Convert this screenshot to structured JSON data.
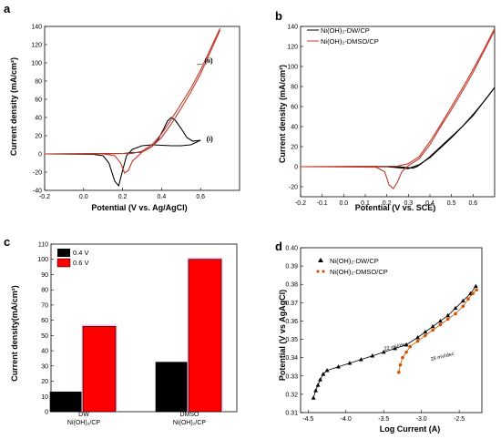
{
  "panels": {
    "a": {
      "letter": "a",
      "xlabel": "Potential (V vs. Ag/AgCl)",
      "ylabel": "Current density (mA/cm²)",
      "curve_labels": [
        "(i)",
        "(ii)"
      ]
    },
    "b": {
      "letter": "b",
      "xlabel": "Potential (V vs. SCE)",
      "ylabel": "Current density (mA/cm²)",
      "legend": [
        "Ni(OH)₂-DW/CP",
        "Ni(OH)₂-DMSO/CP"
      ]
    },
    "c": {
      "letter": "c",
      "ylabel": "Current density(mA/cm²)",
      "legend": [
        "0.4 V",
        "0.6 V"
      ],
      "xcat_line1": [
        "DW",
        "DMSO"
      ],
      "xcat_line2": [
        "Ni(OH)₂/CP",
        "Ni(OH)₂/CP"
      ]
    },
    "d": {
      "letter": "d",
      "xlabel": "Log Current (A)",
      "ylabel": "Potential (V vs AgAgCl)",
      "legend": [
        "Ni(OH)₂-DW/CP",
        "Ni(OH)₂-DMSO/CP"
      ],
      "annotations": [
        "22 mV/dec",
        "28 mV/dec"
      ]
    }
  },
  "colors": {
    "black": "#000000",
    "red": "#ff0000",
    "dark_red": "#c0392b",
    "orange_red": "#d35400",
    "bar_highlight": "#f2c6ee"
  },
  "chart_data": [
    {
      "panel": "a",
      "type": "line",
      "xlim": [
        -0.2,
        0.8
      ],
      "ylim": [
        -40,
        140
      ],
      "xticks": [
        -0.2,
        0.0,
        0.2,
        0.4,
        0.6
      ],
      "xtick_labels": [
        "-0.2",
        "0.0",
        "0.2",
        "0.4",
        "0.6"
      ],
      "yticks": [
        -40,
        -20,
        0,
        20,
        40,
        60,
        80,
        100,
        120,
        140
      ],
      "series": [
        {
          "label": "(i)",
          "color": "#000000",
          "forward": [
            [
              -0.2,
              0
            ],
            [
              0.2,
              0.5
            ],
            [
              0.3,
              2
            ],
            [
              0.35,
              8
            ],
            [
              0.38,
              15
            ],
            [
              0.41,
              27
            ],
            [
              0.43,
              36
            ],
            [
              0.45,
              40
            ],
            [
              0.47,
              37
            ],
            [
              0.5,
              28
            ],
            [
              0.53,
              18
            ],
            [
              0.56,
              14
            ],
            [
              0.6,
              15
            ]
          ],
          "reverse": [
            [
              0.6,
              15
            ],
            [
              0.55,
              10
            ],
            [
              0.5,
              9
            ],
            [
              0.45,
              9
            ],
            [
              0.4,
              9.5
            ],
            [
              0.35,
              10
            ],
            [
              0.3,
              9
            ],
            [
              0.25,
              5
            ],
            [
              0.22,
              -2
            ],
            [
              0.2,
              -18
            ],
            [
              0.18,
              -35
            ],
            [
              0.16,
              -30
            ],
            [
              0.13,
              -10
            ],
            [
              0.1,
              -2
            ],
            [
              0.05,
              -0.5
            ],
            [
              -0.2,
              0
            ]
          ]
        },
        {
          "label": "(ii)",
          "color": "#c0392b",
          "forward": [
            [
              -0.2,
              0
            ],
            [
              0.25,
              0.5
            ],
            [
              0.3,
              3
            ],
            [
              0.35,
              10
            ],
            [
              0.4,
              22
            ],
            [
              0.45,
              38
            ],
            [
              0.5,
              55
            ],
            [
              0.55,
              72
            ],
            [
              0.6,
              92
            ],
            [
              0.65,
              115
            ],
            [
              0.7,
              138
            ]
          ],
          "reverse": [
            [
              0.7,
              136
            ],
            [
              0.65,
              112
            ],
            [
              0.6,
              88
            ],
            [
              0.55,
              68
            ],
            [
              0.5,
              50
            ],
            [
              0.45,
              33
            ],
            [
              0.4,
              18
            ],
            [
              0.35,
              8
            ],
            [
              0.3,
              2
            ],
            [
              0.25,
              -8
            ],
            [
              0.23,
              -18
            ],
            [
              0.21,
              -21
            ],
            [
              0.19,
              -10
            ],
            [
              0.16,
              -2
            ],
            [
              0.1,
              0
            ],
            [
              -0.2,
              0
            ]
          ]
        }
      ]
    },
    {
      "panel": "b",
      "type": "line",
      "xlim": [
        -0.2,
        0.7
      ],
      "ylim": [
        -30,
        140
      ],
      "xticks": [
        -0.2,
        -0.1,
        0.0,
        0.1,
        0.2,
        0.3,
        0.4,
        0.5,
        0.6
      ],
      "xtick_labels": [
        "-0.2",
        "-0.1",
        "0.0",
        "0.1",
        "0.2",
        "0.3",
        "0.4",
        "0.5",
        "0.6"
      ],
      "yticks": [
        -20,
        0,
        20,
        40,
        60,
        80,
        100,
        120,
        140
      ],
      "series": [
        {
          "name": "Ni(OH)₂-DW/CP",
          "color": "#000000",
          "forward": [
            [
              -0.2,
              0
            ],
            [
              0.25,
              0
            ],
            [
              0.3,
              -1
            ],
            [
              0.32,
              -1.5
            ],
            [
              0.34,
              0
            ],
            [
              0.36,
              3
            ],
            [
              0.4,
              10
            ],
            [
              0.45,
              20
            ],
            [
              0.5,
              30
            ],
            [
              0.55,
              40
            ],
            [
              0.6,
              52
            ],
            [
              0.65,
              65
            ],
            [
              0.7,
              79
            ]
          ],
          "reverse": [
            [
              0.7,
              79
            ],
            [
              0.6,
              51
            ],
            [
              0.5,
              29
            ],
            [
              0.4,
              9
            ],
            [
              0.35,
              2
            ],
            [
              0.3,
              -2
            ],
            [
              0.25,
              -1
            ],
            [
              0.2,
              0
            ],
            [
              -0.2,
              0
            ]
          ]
        },
        {
          "name": "Ni(OH)₂-DMSO/CP",
          "color": "#c0392b",
          "forward": [
            [
              -0.2,
              0
            ],
            [
              0.25,
              0.5
            ],
            [
              0.3,
              3
            ],
            [
              0.35,
              10
            ],
            [
              0.4,
              25
            ],
            [
              0.45,
              42
            ],
            [
              0.5,
              60
            ],
            [
              0.55,
              78
            ],
            [
              0.6,
              97
            ],
            [
              0.65,
              117
            ],
            [
              0.7,
              138
            ]
          ],
          "reverse": [
            [
              0.7,
              136
            ],
            [
              0.65,
              115
            ],
            [
              0.6,
              94
            ],
            [
              0.55,
              75
            ],
            [
              0.5,
              57
            ],
            [
              0.45,
              40
            ],
            [
              0.4,
              22
            ],
            [
              0.35,
              8
            ],
            [
              0.3,
              1
            ],
            [
              0.27,
              -5
            ],
            [
              0.25,
              -15
            ],
            [
              0.23,
              -22
            ],
            [
              0.21,
              -18
            ],
            [
              0.19,
              -5
            ],
            [
              0.15,
              -0.5
            ],
            [
              -0.2,
              0
            ]
          ]
        }
      ]
    },
    {
      "panel": "c",
      "type": "bar",
      "ylim": [
        0,
        110
      ],
      "yticks": [
        0,
        10,
        20,
        30,
        40,
        50,
        60,
        70,
        80,
        90,
        100,
        110
      ],
      "categories": [
        "DW Ni(OH)₂/CP",
        "DMSO Ni(OH)₂/CP"
      ],
      "series": [
        {
          "name": "0.4 V",
          "color": "#000000",
          "values": [
            13,
            32.5
          ]
        },
        {
          "name": "0.6 V",
          "color": "#ff0000",
          "values": [
            56,
            100
          ]
        }
      ]
    },
    {
      "panel": "d",
      "type": "scatter",
      "xlim": [
        -4.6,
        -2.2
      ],
      "ylim": [
        0.31,
        0.4
      ],
      "xticks": [
        -4.5,
        -4.0,
        -3.5,
        -3.0,
        -2.5
      ],
      "xtick_labels": [
        "-4.5",
        "-4.0",
        "-3.5",
        "-3.0",
        "-2.5"
      ],
      "yticks": [
        0.31,
        0.32,
        0.33,
        0.34,
        0.35,
        0.36,
        0.37,
        0.38,
        0.39,
        0.4
      ],
      "ytick_labels": [
        "0.31",
        "0.32",
        "0.33",
        "0.34",
        "0.35",
        "0.36",
        "0.37",
        "0.38",
        "0.39",
        "0.40"
      ],
      "series": [
        {
          "name": "Ni(OH)₂-DW/CP",
          "color": "#000000",
          "marker": "triangle",
          "points": [
            [
              -4.43,
              0.318
            ],
            [
              -4.4,
              0.322
            ],
            [
              -4.37,
              0.325
            ],
            [
              -4.34,
              0.328
            ],
            [
              -4.3,
              0.331
            ],
            [
              -4.25,
              0.333
            ],
            [
              -4.1,
              0.335
            ],
            [
              -3.95,
              0.337
            ],
            [
              -3.8,
              0.339
            ],
            [
              -3.65,
              0.341
            ],
            [
              -3.5,
              0.343
            ],
            [
              -3.35,
              0.345
            ],
            [
              -3.2,
              0.347
            ],
            [
              -3.05,
              0.351
            ],
            [
              -2.95,
              0.354
            ],
            [
              -2.85,
              0.357
            ],
            [
              -2.75,
              0.36
            ],
            [
              -2.65,
              0.363
            ],
            [
              -2.55,
              0.367
            ],
            [
              -2.45,
              0.371
            ],
            [
              -2.35,
              0.375
            ],
            [
              -2.28,
              0.379
            ]
          ]
        },
        {
          "name": "Ni(OH)₂-DMSO/CP",
          "color": "#d35400",
          "marker": "circle",
          "points": [
            [
              -3.3,
              0.332
            ],
            [
              -3.28,
              0.336
            ],
            [
              -3.25,
              0.34
            ],
            [
              -3.2,
              0.343
            ],
            [
              -3.15,
              0.346
            ],
            [
              -3.05,
              0.349
            ],
            [
              -2.95,
              0.352
            ],
            [
              -2.85,
              0.355
            ],
            [
              -2.75,
              0.358
            ],
            [
              -2.65,
              0.361
            ],
            [
              -2.55,
              0.364
            ],
            [
              -2.45,
              0.368
            ],
            [
              -2.38,
              0.372
            ],
            [
              -2.32,
              0.375
            ],
            [
              -2.27,
              0.377
            ]
          ]
        }
      ]
    }
  ]
}
